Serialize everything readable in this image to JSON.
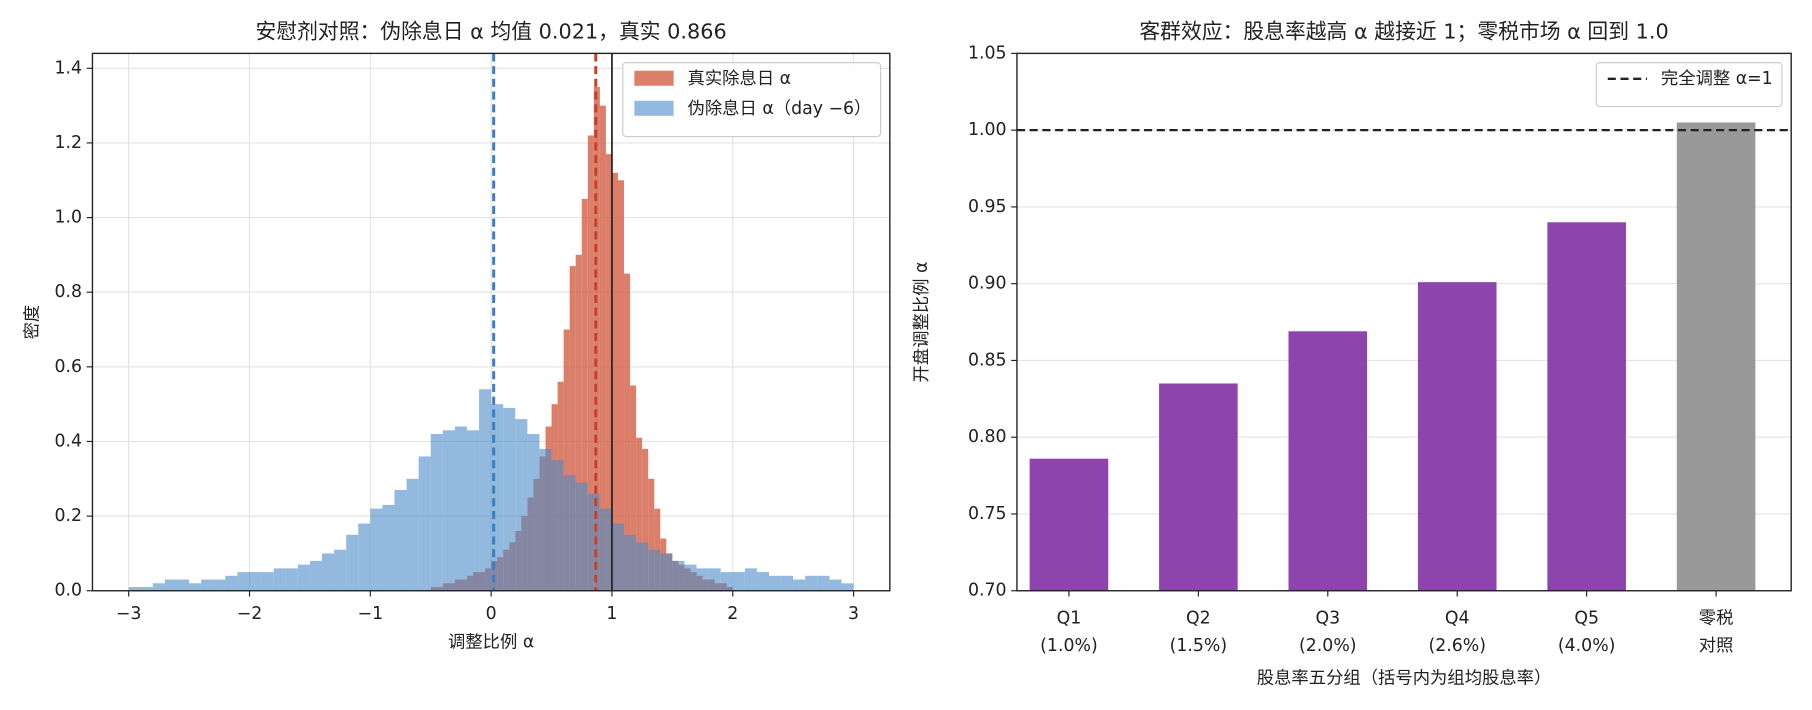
{
  "chart_data": [
    {
      "type": "histogram",
      "title": "安慰剂对照：伪除息日 α 均值 0.021，真实 0.866",
      "x_label": "调整比例 α",
      "y_label": "密度",
      "xlim": [
        -3.3,
        3.3
      ],
      "ylim": [
        0,
        1.44
      ],
      "xticks": [
        {
          "value": -3,
          "label": "−3"
        },
        {
          "value": -2,
          "label": "−2"
        },
        {
          "value": -1,
          "label": "−1"
        },
        0,
        1,
        2,
        3
      ],
      "yticks": [
        {
          "value": 0,
          "label": "0.0"
        },
        {
          "value": 0.2,
          "label": "0.2"
        },
        {
          "value": 0.4,
          "label": "0.4"
        },
        {
          "value": 0.6,
          "label": "0.6"
        },
        {
          "value": 0.8,
          "label": "0.8"
        },
        {
          "value": 1.0,
          "label": "1.0"
        },
        {
          "value": 1.2,
          "label": "1.2"
        },
        {
          "value": 1.4,
          "label": "1.4"
        }
      ],
      "grid": "both",
      "legend": "upper right",
      "series": [
        {
          "name": "真实除息日 α",
          "color": "#d35f45",
          "alpha": 0.8,
          "bins": [
            -0.5,
            -0.45,
            -0.4,
            -0.35,
            -0.3,
            -0.25,
            -0.2,
            -0.15,
            -0.1,
            -0.05,
            0,
            0.05,
            0.1,
            0.15,
            0.2,
            0.25,
            0.3,
            0.35,
            0.4,
            0.45,
            0.5,
            0.55,
            0.6,
            0.65,
            0.7,
            0.75,
            0.8,
            0.85,
            0.9,
            0.95,
            1,
            1.05,
            1.1,
            1.15,
            1.2,
            1.25,
            1.3,
            1.35,
            1.4,
            1.45,
            1.5,
            1.55,
            1.6,
            1.65,
            1.7,
            1.75,
            1.8,
            1.85,
            1.9,
            1.95,
            2
          ],
          "values": [
            0.01,
            0.01,
            0.02,
            0.02,
            0.03,
            0.03,
            0.04,
            0.05,
            0.05,
            0.06,
            0.08,
            0.09,
            0.11,
            0.13,
            0.16,
            0.2,
            0.25,
            0.3,
            0.36,
            0.44,
            0.5,
            0.56,
            0.7,
            0.87,
            0.9,
            1.05,
            1.22,
            1.35,
            1.3,
            1.17,
            1.12,
            1.1,
            0.85,
            0.55,
            0.41,
            0.38,
            0.3,
            0.22,
            0.14,
            0.1,
            0.08,
            0.07,
            0.06,
            0.05,
            0.04,
            0.03,
            0.03,
            0.02,
            0.02,
            0.01
          ]
        },
        {
          "name": "伪除息日 α（day −6）",
          "color": "#4b8cc8",
          "alpha": 0.6,
          "bins": [
            -3,
            -2.9,
            -2.8,
            -2.7,
            -2.6,
            -2.5,
            -2.4,
            -2.3,
            -2.2,
            -2.1,
            -2,
            -1.9,
            -1.8,
            -1.7,
            -1.6,
            -1.5,
            -1.4,
            -1.3,
            -1.2,
            -1.1,
            -1,
            -0.9,
            -0.8,
            -0.7,
            -0.6,
            -0.5,
            -0.4,
            -0.3,
            -0.2,
            -0.1,
            0,
            0.1,
            0.2,
            0.3,
            0.4,
            0.5,
            0.6,
            0.7,
            0.8,
            0.9,
            1,
            1.1,
            1.2,
            1.3,
            1.4,
            1.5,
            1.6,
            1.7,
            1.8,
            1.9,
            2,
            2.1,
            2.2,
            2.3,
            2.4,
            2.5,
            2.6,
            2.7,
            2.8,
            2.9,
            3
          ],
          "values": [
            0.01,
            0.01,
            0.02,
            0.03,
            0.03,
            0.02,
            0.03,
            0.03,
            0.04,
            0.05,
            0.05,
            0.05,
            0.06,
            0.06,
            0.07,
            0.08,
            0.1,
            0.11,
            0.15,
            0.18,
            0.22,
            0.23,
            0.27,
            0.3,
            0.36,
            0.42,
            0.43,
            0.44,
            0.43,
            0.54,
            0.5,
            0.49,
            0.46,
            0.42,
            0.38,
            0.35,
            0.31,
            0.29,
            0.26,
            0.22,
            0.18,
            0.15,
            0.13,
            0.11,
            0.1,
            0.08,
            0.07,
            0.06,
            0.06,
            0.05,
            0.05,
            0.06,
            0.05,
            0.04,
            0.04,
            0.03,
            0.04,
            0.04,
            0.03,
            0.02
          ]
        }
      ],
      "vlines": [
        {
          "x": 0.021,
          "color": "#3a7fc4",
          "style": "dashed"
        },
        {
          "x": 0.866,
          "color": "#c8402a",
          "style": "dashed"
        },
        {
          "x": 1.0,
          "color": "#222222",
          "style": "solid"
        }
      ]
    },
    {
      "type": "bar",
      "title": "客群效应：股息率越高 α 越接近 1；零税市场 α 回到 1.0",
      "x_label": "股息率五分组（括号内为组均股息率）",
      "y_label": "开盘调整比例 α",
      "categories": [
        "Q1",
        "Q2",
        "Q3",
        "Q4",
        "Q5",
        "零税"
      ],
      "category_sublabels": [
        "(1.0%)",
        "(1.5%)",
        "(2.0%)",
        "(2.6%)",
        "(4.0%)",
        "对照"
      ],
      "values": [
        0.786,
        0.835,
        0.869,
        0.901,
        0.94,
        1.005
      ],
      "colors": [
        "#8e44ad",
        "#8e44ad",
        "#8e44ad",
        "#8e44ad",
        "#8e44ad",
        "#999999"
      ],
      "ylim": [
        0.7,
        1.05
      ],
      "yticks": [
        {
          "value": 0.7,
          "label": "0.70"
        },
        {
          "value": 0.75,
          "label": "0.75"
        },
        {
          "value": 0.8,
          "label": "0.80"
        },
        {
          "value": 0.85,
          "label": "0.85"
        },
        {
          "value": 0.9,
          "label": "0.90"
        },
        {
          "value": 0.95,
          "label": "0.95"
        },
        {
          "value": 1.0,
          "label": "1.00"
        },
        {
          "value": 1.05,
          "label": "1.05"
        }
      ],
      "grid": "y",
      "legend": "upper right",
      "hlines": [
        {
          "y": 1.0,
          "color": "#222222",
          "style": "dashed",
          "label": "完全调整 α=1"
        }
      ]
    }
  ]
}
